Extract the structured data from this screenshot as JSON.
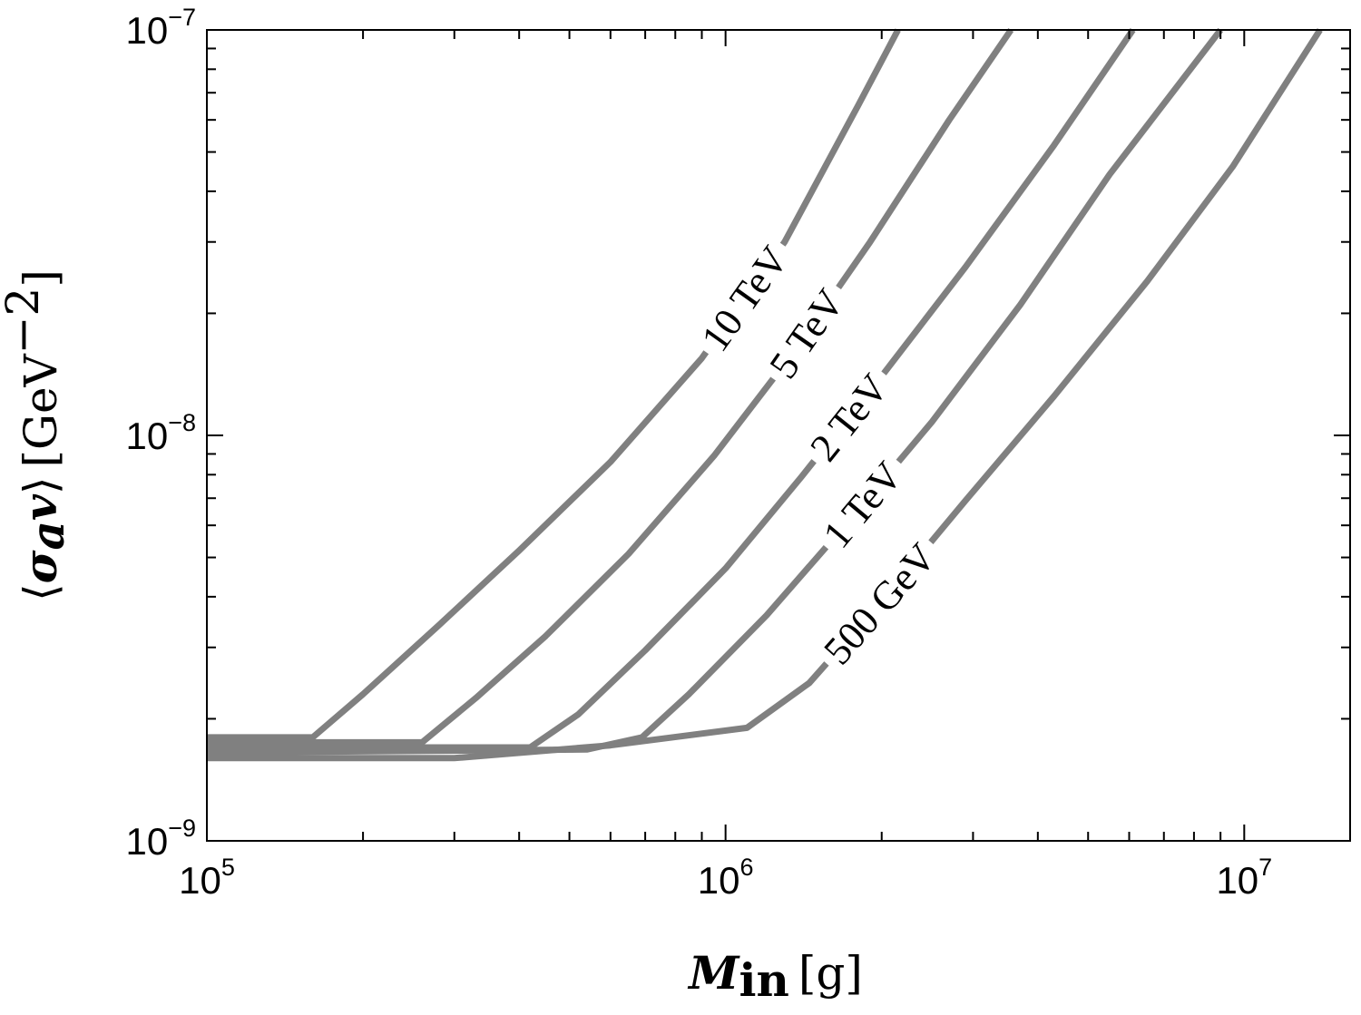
{
  "chart_data": {
    "type": "line",
    "title": "",
    "xlabel": {
      "main": "M",
      "sub": "in",
      "unit": "[g]"
    },
    "ylabel": {
      "open": "⟨",
      "sigma": "σ",
      "sub": "a",
      "v": "v",
      "close": "⟩",
      "unit": "[GeV",
      "exp": "−2",
      "unit_close": "]"
    },
    "xscale": "log",
    "yscale": "log",
    "xlim": [
      100000,
      16000000
    ],
    "ylim": [
      1e-09,
      1e-07
    ],
    "grid": false,
    "legend": "none",
    "line_color": "#808080",
    "x_ticks": [
      {
        "value": 100000,
        "base": "10",
        "exp": "5"
      },
      {
        "value": 1000000,
        "base": "10",
        "exp": "6"
      },
      {
        "value": 10000000,
        "base": "10",
        "exp": "7"
      }
    ],
    "y_ticks": [
      {
        "value": 1e-09,
        "base": "10",
        "exp": "−9"
      },
      {
        "value": 1e-08,
        "base": "10",
        "exp": "−8"
      },
      {
        "value": 1e-07,
        "base": "10",
        "exp": "−7"
      }
    ],
    "series": [
      {
        "name": "10 TeV",
        "x": [
          100000,
          160000,
          200000,
          280000,
          400000,
          600000,
          900000,
          1300000,
          1800000,
          2150000
        ],
        "y": [
          1.8e-09,
          1.8e-09,
          2.3e-09,
          3.4e-09,
          5.2e-09,
          8.6e-09,
          1.55e-08,
          3e-08,
          6.5e-08,
          1e-07
        ]
      },
      {
        "name": "5 TeV",
        "x": [
          100000,
          260000,
          330000,
          450000,
          650000,
          950000,
          1350000,
          1900000,
          2700000,
          3550000
        ],
        "y": [
          1.75e-09,
          1.75e-09,
          2.25e-09,
          3.2e-09,
          5.1e-09,
          8.9e-09,
          1.6e-08,
          3e-08,
          6e-08,
          1e-07
        ]
      },
      {
        "name": "2 TeV",
        "x": [
          100000,
          420000,
          520000,
          700000,
          1000000,
          1400000,
          2000000,
          2900000,
          4300000,
          6100000
        ],
        "y": [
          1.7e-09,
          1.7e-09,
          2.05e-09,
          2.95e-09,
          4.7e-09,
          7.9e-09,
          1.4e-08,
          2.6e-08,
          5.2e-08,
          1e-07
        ]
      },
      {
        "name": "1 TeV",
        "x": [
          100000,
          540000,
          690000,
          850000,
          1200000,
          1700000,
          2500000,
          3700000,
          5500000,
          9000000
        ],
        "y": [
          1.65e-09,
          1.68e-09,
          1.8e-09,
          2.3e-09,
          3.6e-09,
          6e-09,
          1.08e-08,
          2.1e-08,
          4.4e-08,
          1e-07
        ]
      },
      {
        "name": "500 GeV",
        "x": [
          100000,
          300000,
          600000,
          1100000,
          1450000,
          2000000,
          2900000,
          4300000,
          6500000,
          9500000,
          14000000
        ],
        "y": [
          1.6e-09,
          1.6e-09,
          1.72e-09,
          1.9e-09,
          2.45e-09,
          3.9e-09,
          6.9e-09,
          1.25e-08,
          2.4e-08,
          4.6e-08,
          1e-07
        ]
      }
    ]
  }
}
